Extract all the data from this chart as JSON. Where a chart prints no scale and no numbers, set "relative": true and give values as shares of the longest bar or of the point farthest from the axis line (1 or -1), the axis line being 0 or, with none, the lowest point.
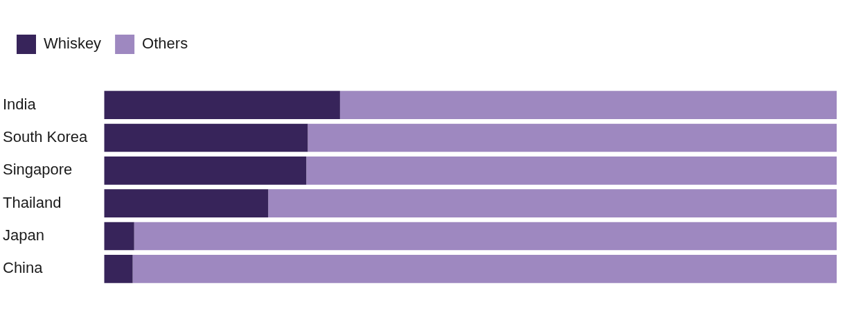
{
  "chart_data": {
    "type": "bar",
    "orientation": "horizontal",
    "stacked": true,
    "relative": true,
    "legend": "top left",
    "categories": [
      "India",
      "South Korea",
      "Singapore",
      "Thailand",
      "Japan",
      "China"
    ],
    "series": [
      {
        "name": "Whiskey",
        "color": "#37245a",
        "values": [
          0.322,
          0.278,
          0.276,
          0.224,
          0.041,
          0.039
        ]
      },
      {
        "name": "Others",
        "color": "#9e88c0",
        "values": [
          0.678,
          0.722,
          0.724,
          0.776,
          0.959,
          0.961
        ]
      }
    ]
  }
}
